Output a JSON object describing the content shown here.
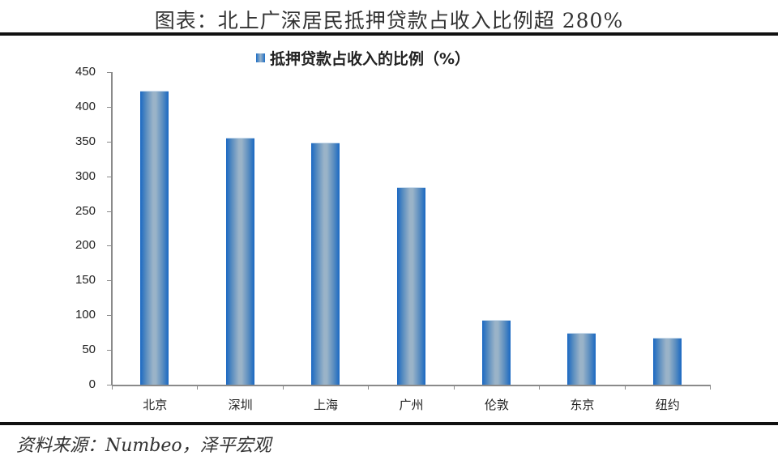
{
  "title": "图表：北上广深居民抵押贷款占收入比例超 280%",
  "source": "资料来源：Numbeo，泽平宏观",
  "legend": {
    "label": "抵押贷款占收入的比例（%）",
    "color": "#1f6fc6"
  },
  "chart_data": {
    "type": "bar",
    "title": "图表：北上广深居民抵押贷款占收入比例超 280%",
    "categories": [
      "北京",
      "深圳",
      "上海",
      "广州",
      "伦敦",
      "东京",
      "纽约"
    ],
    "series": [
      {
        "name": "抵押贷款占收入的比例（%）",
        "values": [
          423,
          355,
          349,
          284,
          93,
          75,
          68
        ]
      }
    ],
    "xlabel": "",
    "ylabel": "",
    "ylim": [
      0,
      450
    ],
    "yticks": [
      0,
      50,
      100,
      150,
      200,
      250,
      300,
      350,
      400,
      450
    ],
    "grid": false,
    "legend_position": "top"
  }
}
